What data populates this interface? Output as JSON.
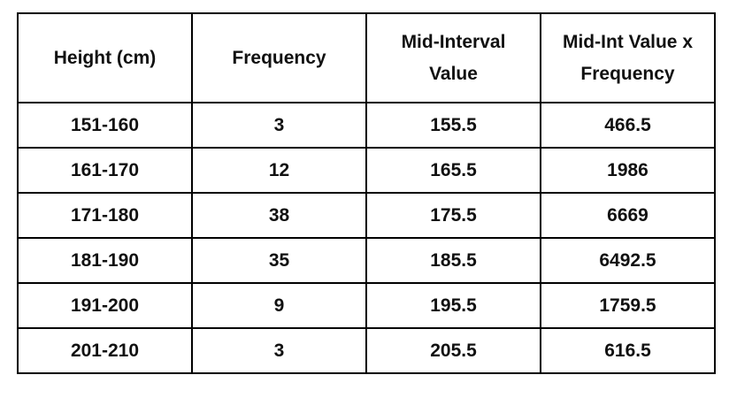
{
  "table": {
    "header": [
      "Height (cm)",
      "Frequency",
      "Mid-Interval Value",
      "Mid-Int Value x Frequency"
    ],
    "rows": [
      [
        "151-160",
        "3",
        "155.5",
        "466.5"
      ],
      [
        "161-170",
        "12",
        "165.5",
        "1986"
      ],
      [
        "171-180",
        "38",
        "175.5",
        "6669"
      ],
      [
        "181-190",
        "35",
        "185.5",
        "6492.5"
      ],
      [
        "191-200",
        "9",
        "195.5",
        "1759.5"
      ],
      [
        "201-210",
        "3",
        "205.5",
        "616.5"
      ]
    ]
  }
}
